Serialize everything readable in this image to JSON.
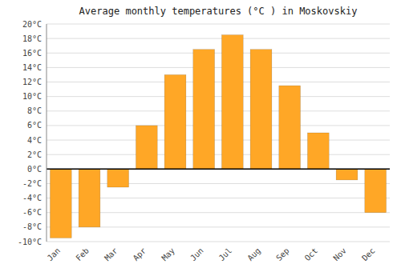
{
  "chart_data": {
    "type": "bar",
    "title": "Average monthly temperatures (°C ) in Moskovskiy",
    "categories": [
      "Jan",
      "Feb",
      "Mar",
      "Apr",
      "May",
      "Jun",
      "Jul",
      "Aug",
      "Sep",
      "Oct",
      "Nov",
      "Dec"
    ],
    "values": [
      -9.5,
      -8.0,
      -2.5,
      6.0,
      13.0,
      16.5,
      18.5,
      16.5,
      11.5,
      5.0,
      -1.5,
      -6.0
    ],
    "color": "#FFA726",
    "ylim": [
      -10,
      20
    ],
    "yticks": [
      {
        "value": -10,
        "label": "-10°C"
      },
      {
        "value": -8,
        "label": "-8°C"
      },
      {
        "value": -6,
        "label": "-6°C"
      },
      {
        "value": -4,
        "label": "-4°C"
      },
      {
        "value": -2,
        "label": "-2°C"
      },
      {
        "value": 0,
        "label": "0°C"
      },
      {
        "value": 2,
        "label": "2°C"
      },
      {
        "value": 4,
        "label": "4°C"
      },
      {
        "value": 6,
        "label": "6°C"
      },
      {
        "value": 8,
        "label": "8°C"
      },
      {
        "value": 10,
        "label": "10°C"
      },
      {
        "value": 12,
        "label": "12°C"
      },
      {
        "value": 14,
        "label": "14°C"
      },
      {
        "value": 16,
        "label": "16°C"
      },
      {
        "value": 18,
        "label": "18°C"
      },
      {
        "value": 20,
        "label": "20°C"
      }
    ],
    "grid": true
  }
}
